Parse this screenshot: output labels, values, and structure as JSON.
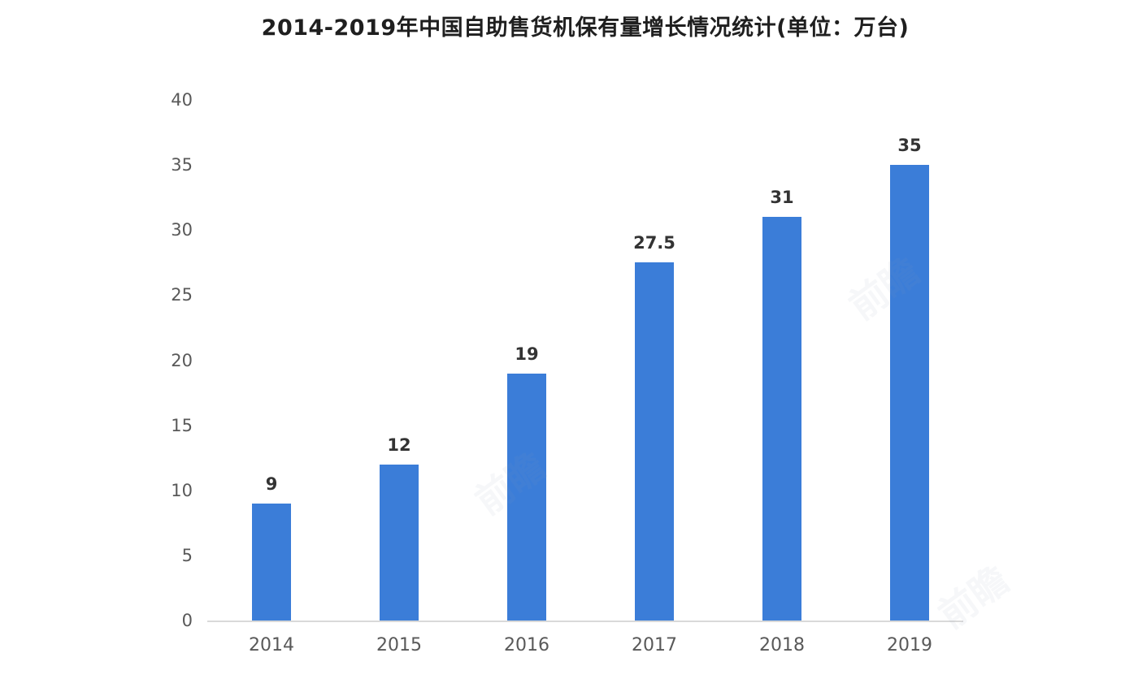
{
  "chart_data": {
    "type": "bar",
    "title": "2014-2019年中国自助售货机保有量增长情况统计(单位：万台)",
    "categories": [
      "2014",
      "2015",
      "2016",
      "2017",
      "2018",
      "2019"
    ],
    "values": [
      9,
      12,
      19,
      27.5,
      31,
      35
    ],
    "value_labels": [
      "9",
      "12",
      "19",
      "27.5",
      "31",
      "35"
    ],
    "xlabel": "",
    "ylabel": "",
    "ylim": [
      0,
      40
    ],
    "yticks": [
      0,
      5,
      10,
      15,
      20,
      25,
      30,
      35,
      40
    ],
    "grid": false,
    "legend": "none",
    "bar_color": "#3b7dd8",
    "axis_line_color": "#d9d9d9",
    "tick_label_color": "#595959",
    "value_label_color": "#333333",
    "title_color": "#1f1f1f"
  },
  "watermark": {
    "text": "前瞻",
    "color": "#8fa0b8"
  }
}
